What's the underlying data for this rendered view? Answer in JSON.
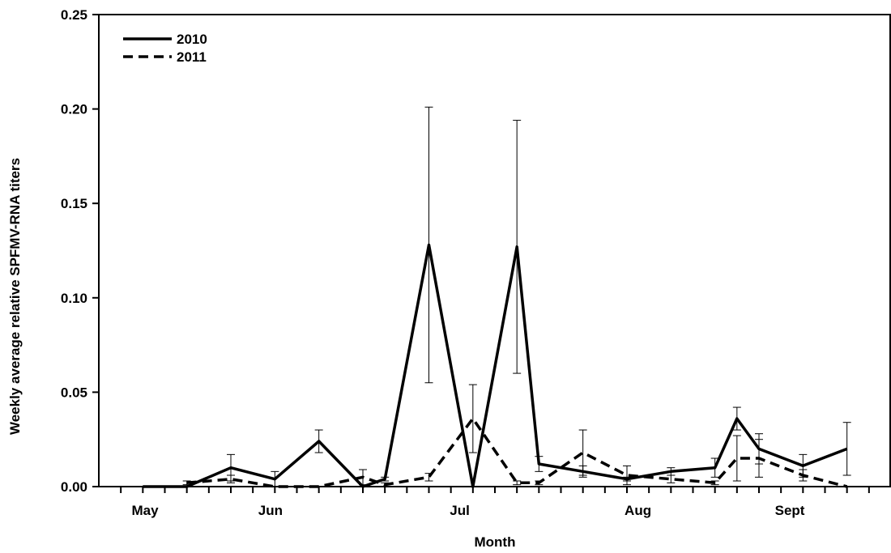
{
  "chart_data": {
    "type": "line",
    "xlabel": "Month",
    "ylabel": "Weekly average relative SPFMV-RNA titers",
    "ylim": [
      0,
      0.25
    ],
    "yticks": [
      "0.00",
      "0.05",
      "0.10",
      "0.15",
      "0.20",
      "0.25"
    ],
    "month_labels": [
      "May",
      "Jun",
      "Jul",
      "Aug",
      "Sept"
    ],
    "x_week_positions": [
      1,
      2,
      3,
      4,
      5,
      6,
      7,
      8,
      9,
      10,
      11,
      12,
      13,
      14,
      15,
      16,
      17,
      18,
      19,
      20,
      21,
      22,
      23,
      24,
      25,
      26,
      27,
      28,
      29,
      30,
      31,
      32,
      33,
      34,
      35
    ],
    "legend_position": "top-left",
    "grid": false,
    "series": [
      {
        "name": "2010",
        "style": "solid",
        "color": "#000000",
        "x": [
          2,
          4,
          6,
          8,
          10,
          12,
          13,
          15,
          17,
          19,
          20,
          22,
          24,
          26,
          28,
          29,
          30,
          32,
          34
        ],
        "y": [
          0,
          0,
          0.01,
          0.004,
          0.024,
          0,
          0.004,
          0.128,
          0,
          0.127,
          0.012,
          0.008,
          0.004,
          0.008,
          0.01,
          0.036,
          0.02,
          0.011,
          0.02
        ],
        "err": [
          null,
          null,
          0.007,
          0.004,
          0.006,
          null,
          0.001,
          0.073,
          null,
          0.067,
          0.004,
          0.003,
          0.001,
          0.002,
          0.005,
          0.006,
          0.008,
          0.006,
          0.014
        ]
      },
      {
        "name": "2011",
        "style": "dashed",
        "color": "#000000",
        "x": [
          4,
          6,
          8,
          10,
          12,
          13,
          15,
          17,
          19,
          20,
          22,
          24,
          26,
          28,
          29,
          30,
          32,
          34
        ],
        "y": [
          0.002,
          0.004,
          0,
          0,
          0.005,
          0.001,
          0.005,
          0.036,
          0.002,
          0.002,
          0.018,
          0.006,
          0.004,
          0.002,
          0.015,
          0.015,
          0.006,
          0
        ],
        "err": [
          0.001,
          0.002,
          null,
          null,
          0.004,
          0.001,
          0.002,
          0.018,
          0.001,
          0.001,
          0.012,
          0.005,
          0.002,
          0.001,
          0.012,
          0.01,
          0.003,
          null
        ]
      }
    ]
  }
}
